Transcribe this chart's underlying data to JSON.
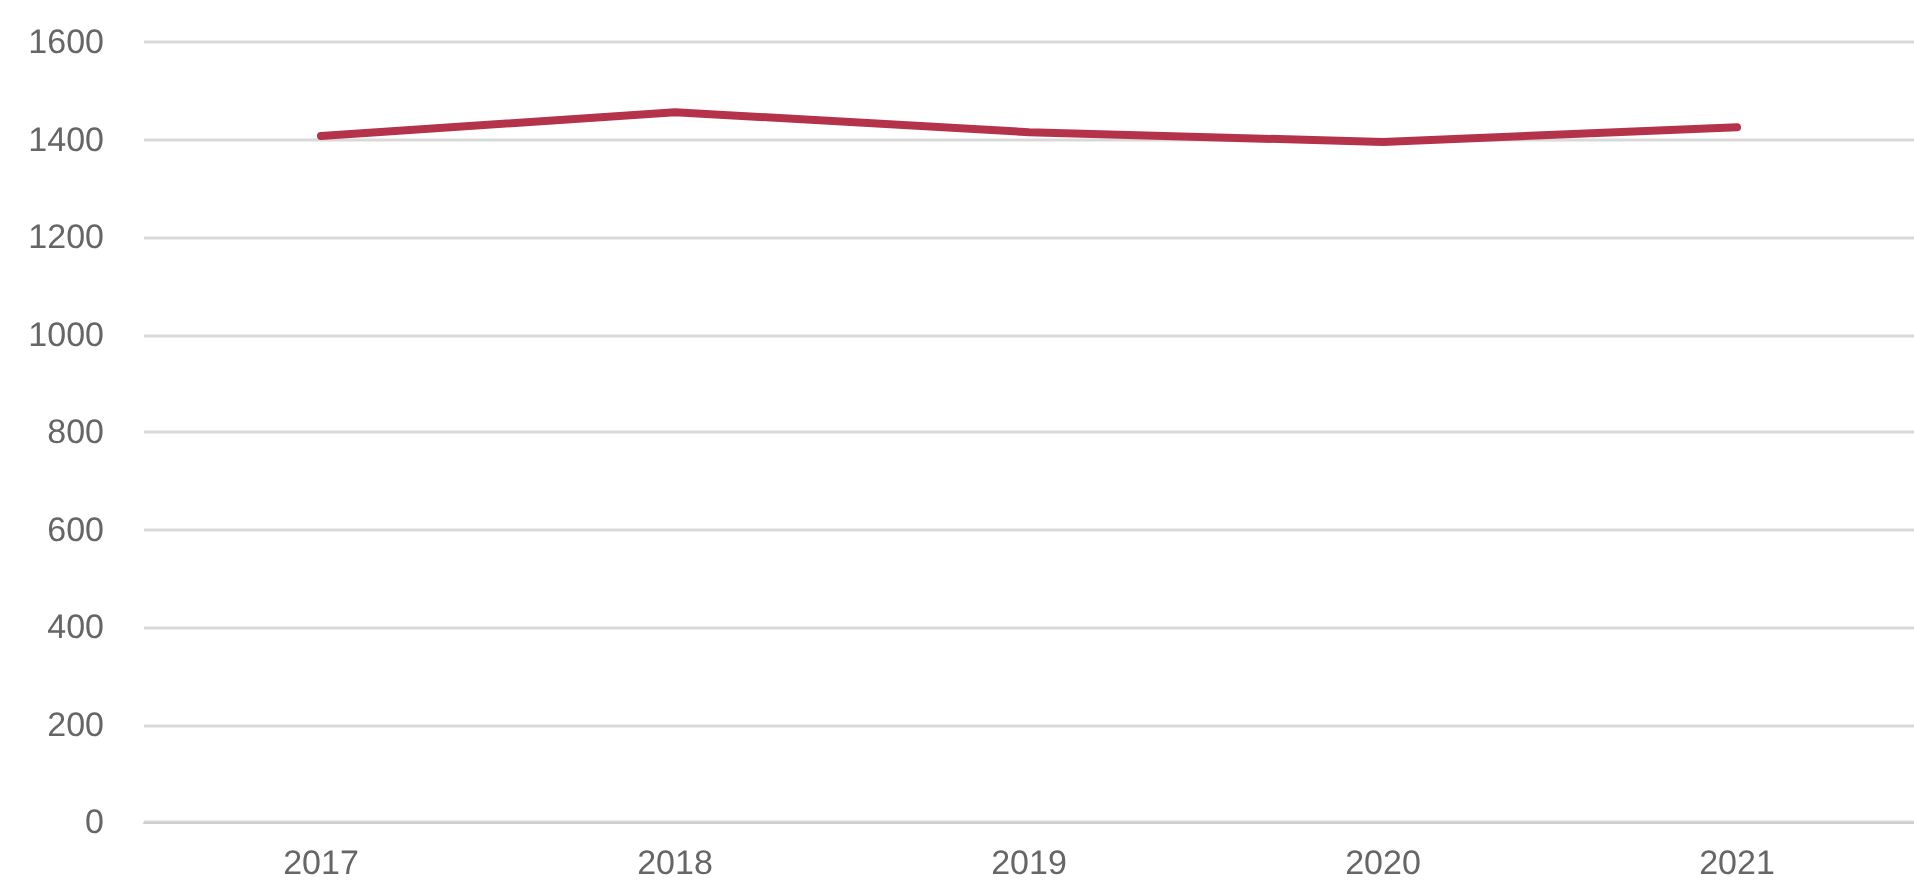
{
  "chart_data": {
    "type": "line",
    "categories": [
      "2017",
      "2018",
      "2019",
      "2020",
      "2021"
    ],
    "series": [
      {
        "color": "#b5334a",
        "values": [
          1407,
          1456,
          1415,
          1395,
          1425
        ]
      }
    ],
    "ylim": [
      0,
      1600
    ],
    "yticks": [
      0,
      200,
      400,
      600,
      800,
      1000,
      1200,
      1400,
      1600
    ],
    "grid": "y",
    "marker": "none",
    "line_style": "solid"
  }
}
